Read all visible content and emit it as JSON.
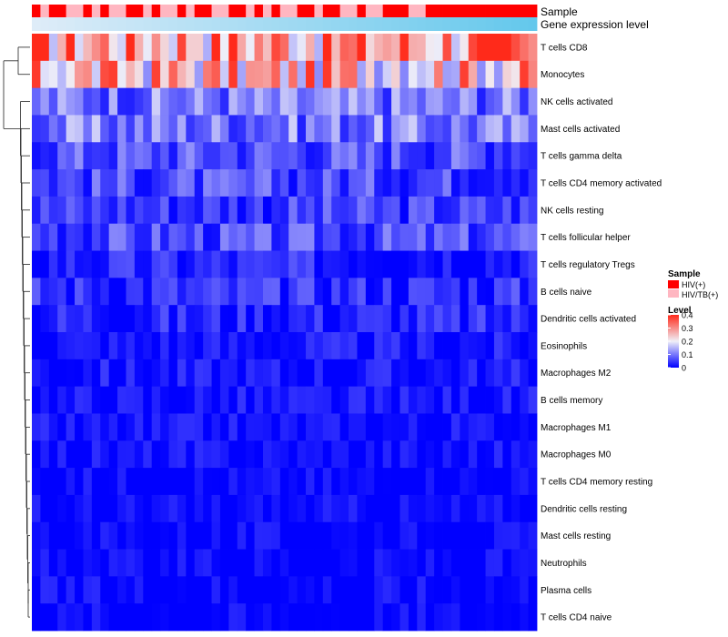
{
  "chart_data": {
    "type": "heatmap",
    "title": "",
    "annotation_labels": {
      "sample": "Sample",
      "expression": "Gene expression level"
    },
    "sample_pattern": [
      "HIV(+)",
      "HIV/TB(+)",
      "HIV(+)",
      "HIV(+)",
      "HIV/TB(+)",
      "HIV/TB(+)",
      "HIV(+)",
      "HIV/TB(+)",
      "HIV(+)",
      "HIV/TB(+)",
      "HIV/TB(+)",
      "HIV(+)",
      "HIV(+)",
      "HIV/TB(+)",
      "HIV(+)",
      "HIV/TB(+)",
      "HIV/TB(+)",
      "HIV(+)",
      "HIV/TB(+)",
      "HIV(+)",
      "HIV(+)",
      "HIV/TB(+)",
      "HIV/TB(+)",
      "HIV(+)",
      "HIV(+)",
      "HIV/TB(+)",
      "HIV(+)",
      "HIV/TB(+)",
      "HIV(+)",
      "HIV/TB(+)",
      "HIV/TB(+)",
      "HIV(+)",
      "HIV(+)",
      "HIV/TB(+)",
      "HIV(+)",
      "HIV(+)",
      "HIV/TB(+)",
      "HIV/TB(+)",
      "HIV(+)",
      "HIV/TB(+)",
      "HIV/TB(+)",
      "HIV(+)",
      "HIV(+)",
      "HIV(+)",
      "HIV/TB(+)",
      "HIV/TB(+)",
      "HIV(+)",
      "HIV(+)",
      "HIV(+)",
      "HIV(+)",
      "HIV(+)",
      "HIV(+)",
      "HIV(+)",
      "HIV(+)",
      "HIV(+)",
      "HIV(+)",
      "HIV(+)",
      "HIV(+)",
      "HIV(+)"
    ],
    "expression_range": [
      0,
      0.4
    ],
    "rows": [
      {
        "name": "T cells CD8",
        "mean": 0.3
      },
      {
        "name": "Monocytes",
        "mean": 0.25
      },
      {
        "name": "NK cells activated",
        "mean": 0.1
      },
      {
        "name": "Mast cells activated",
        "mean": 0.1
      },
      {
        "name": "T cells gamma delta",
        "mean": 0.07
      },
      {
        "name": "T cells CD4 memory activated",
        "mean": 0.06
      },
      {
        "name": "NK cells resting",
        "mean": 0.05
      },
      {
        "name": "T cells follicular helper",
        "mean": 0.06
      },
      {
        "name": "T cells regulatory  Tregs",
        "mean": 0.03
      },
      {
        "name": "B cells naive",
        "mean": 0.04
      },
      {
        "name": "Dendritic cells activated",
        "mean": 0.03
      },
      {
        "name": "Eosinophils",
        "mean": 0.015
      },
      {
        "name": "Macrophages M2",
        "mean": 0.015
      },
      {
        "name": "B cells memory",
        "mean": 0.012
      },
      {
        "name": "Macrophages M1",
        "mean": 0.008
      },
      {
        "name": "Macrophages M0",
        "mean": 0.008
      },
      {
        "name": "T cells CD4 memory resting",
        "mean": 0.003
      },
      {
        "name": "Dendritic cells resting",
        "mean": 0.003
      },
      {
        "name": "Mast cells resting",
        "mean": 0.002
      },
      {
        "name": "Neutrophils",
        "mean": 0.002
      },
      {
        "name": "Plasma cells",
        "mean": 0.006
      },
      {
        "name": "T cells CD4 naive",
        "mean": 0.003
      }
    ],
    "legend_sample": {
      "title": "Sample",
      "items": [
        {
          "label": "HIV(+)",
          "color": "#ff0000"
        },
        {
          "label": "HIV/TB(+)",
          "color": "#ffb6c1"
        }
      ]
    },
    "legend_level": {
      "title": "Level",
      "ticks": [
        {
          "label": "0.4",
          "value": 0.4
        },
        {
          "label": "0.3",
          "value": 0.3
        },
        {
          "label": "0.2",
          "value": 0.2
        },
        {
          "label": "0.1",
          "value": 0.1
        },
        {
          "label": "0",
          "value": 0
        }
      ],
      "colors": {
        "low": "#0000ff",
        "mid": "#f0f0f8",
        "high": "#ff2a1a"
      }
    }
  }
}
